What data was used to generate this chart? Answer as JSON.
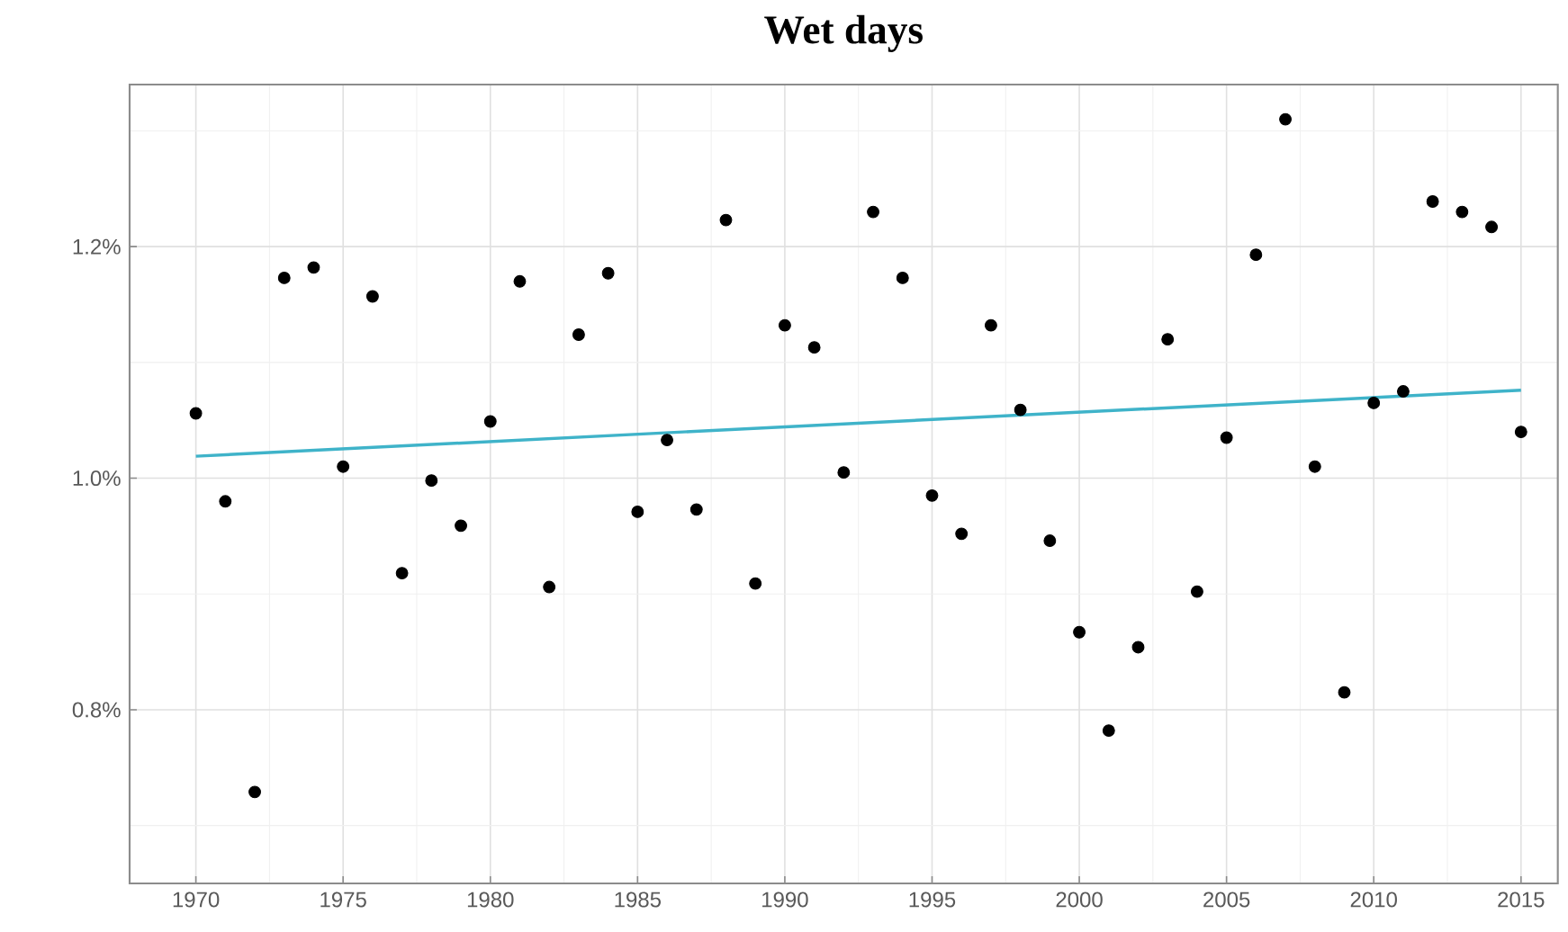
{
  "chart_data": {
    "type": "scatter",
    "title": "Wet days",
    "x": [
      1970,
      1971,
      1972,
      1973,
      1974,
      1975,
      1976,
      1977,
      1978,
      1979,
      1980,
      1981,
      1982,
      1983,
      1984,
      1985,
      1986,
      1987,
      1988,
      1989,
      1990,
      1991,
      1992,
      1993,
      1994,
      1995,
      1996,
      1997,
      1998,
      1999,
      2000,
      2001,
      2002,
      2003,
      2004,
      2005,
      2006,
      2007,
      2008,
      2009,
      2010,
      2011,
      2012,
      2013,
      2014,
      2015
    ],
    "series": [
      {
        "color": "#000000",
        "values": [
          1.056,
          0.98,
          0.729,
          1.173,
          1.182,
          1.01,
          1.157,
          0.918,
          0.998,
          0.959,
          1.049,
          1.17,
          0.906,
          1.124,
          1.177,
          0.971,
          1.033,
          0.973,
          1.223,
          0.909,
          1.132,
          1.113,
          1.005,
          1.23,
          1.173,
          0.985,
          0.952,
          1.132,
          1.059,
          0.946,
          0.867,
          0.782,
          0.854,
          1.12,
          0.902,
          1.035,
          1.193,
          1.31,
          1.01,
          0.815,
          1.065,
          1.075,
          1.239,
          1.23,
          1.217,
          1.04
        ]
      },
      {
        "type": "line",
        "color": "#3fb3c9",
        "x": [
          1970,
          2015
        ],
        "values": [
          1.019,
          1.076
        ],
        "line_style": "solid",
        "marker": "none"
      }
    ],
    "xlim": [
      1967.75,
      2016.25
    ],
    "ylim": [
      0.65,
      1.34
    ],
    "xticks": [
      1970,
      1975,
      1980,
      1985,
      1990,
      1995,
      2000,
      2005,
      2010,
      2015
    ],
    "yticks": [
      {
        "value": 0.8,
        "label": "0.8%"
      },
      {
        "value": 1.0,
        "label": "1.0%"
      },
      {
        "value": 1.2,
        "label": "1.2%"
      }
    ],
    "grid": true,
    "marker": "circle"
  }
}
